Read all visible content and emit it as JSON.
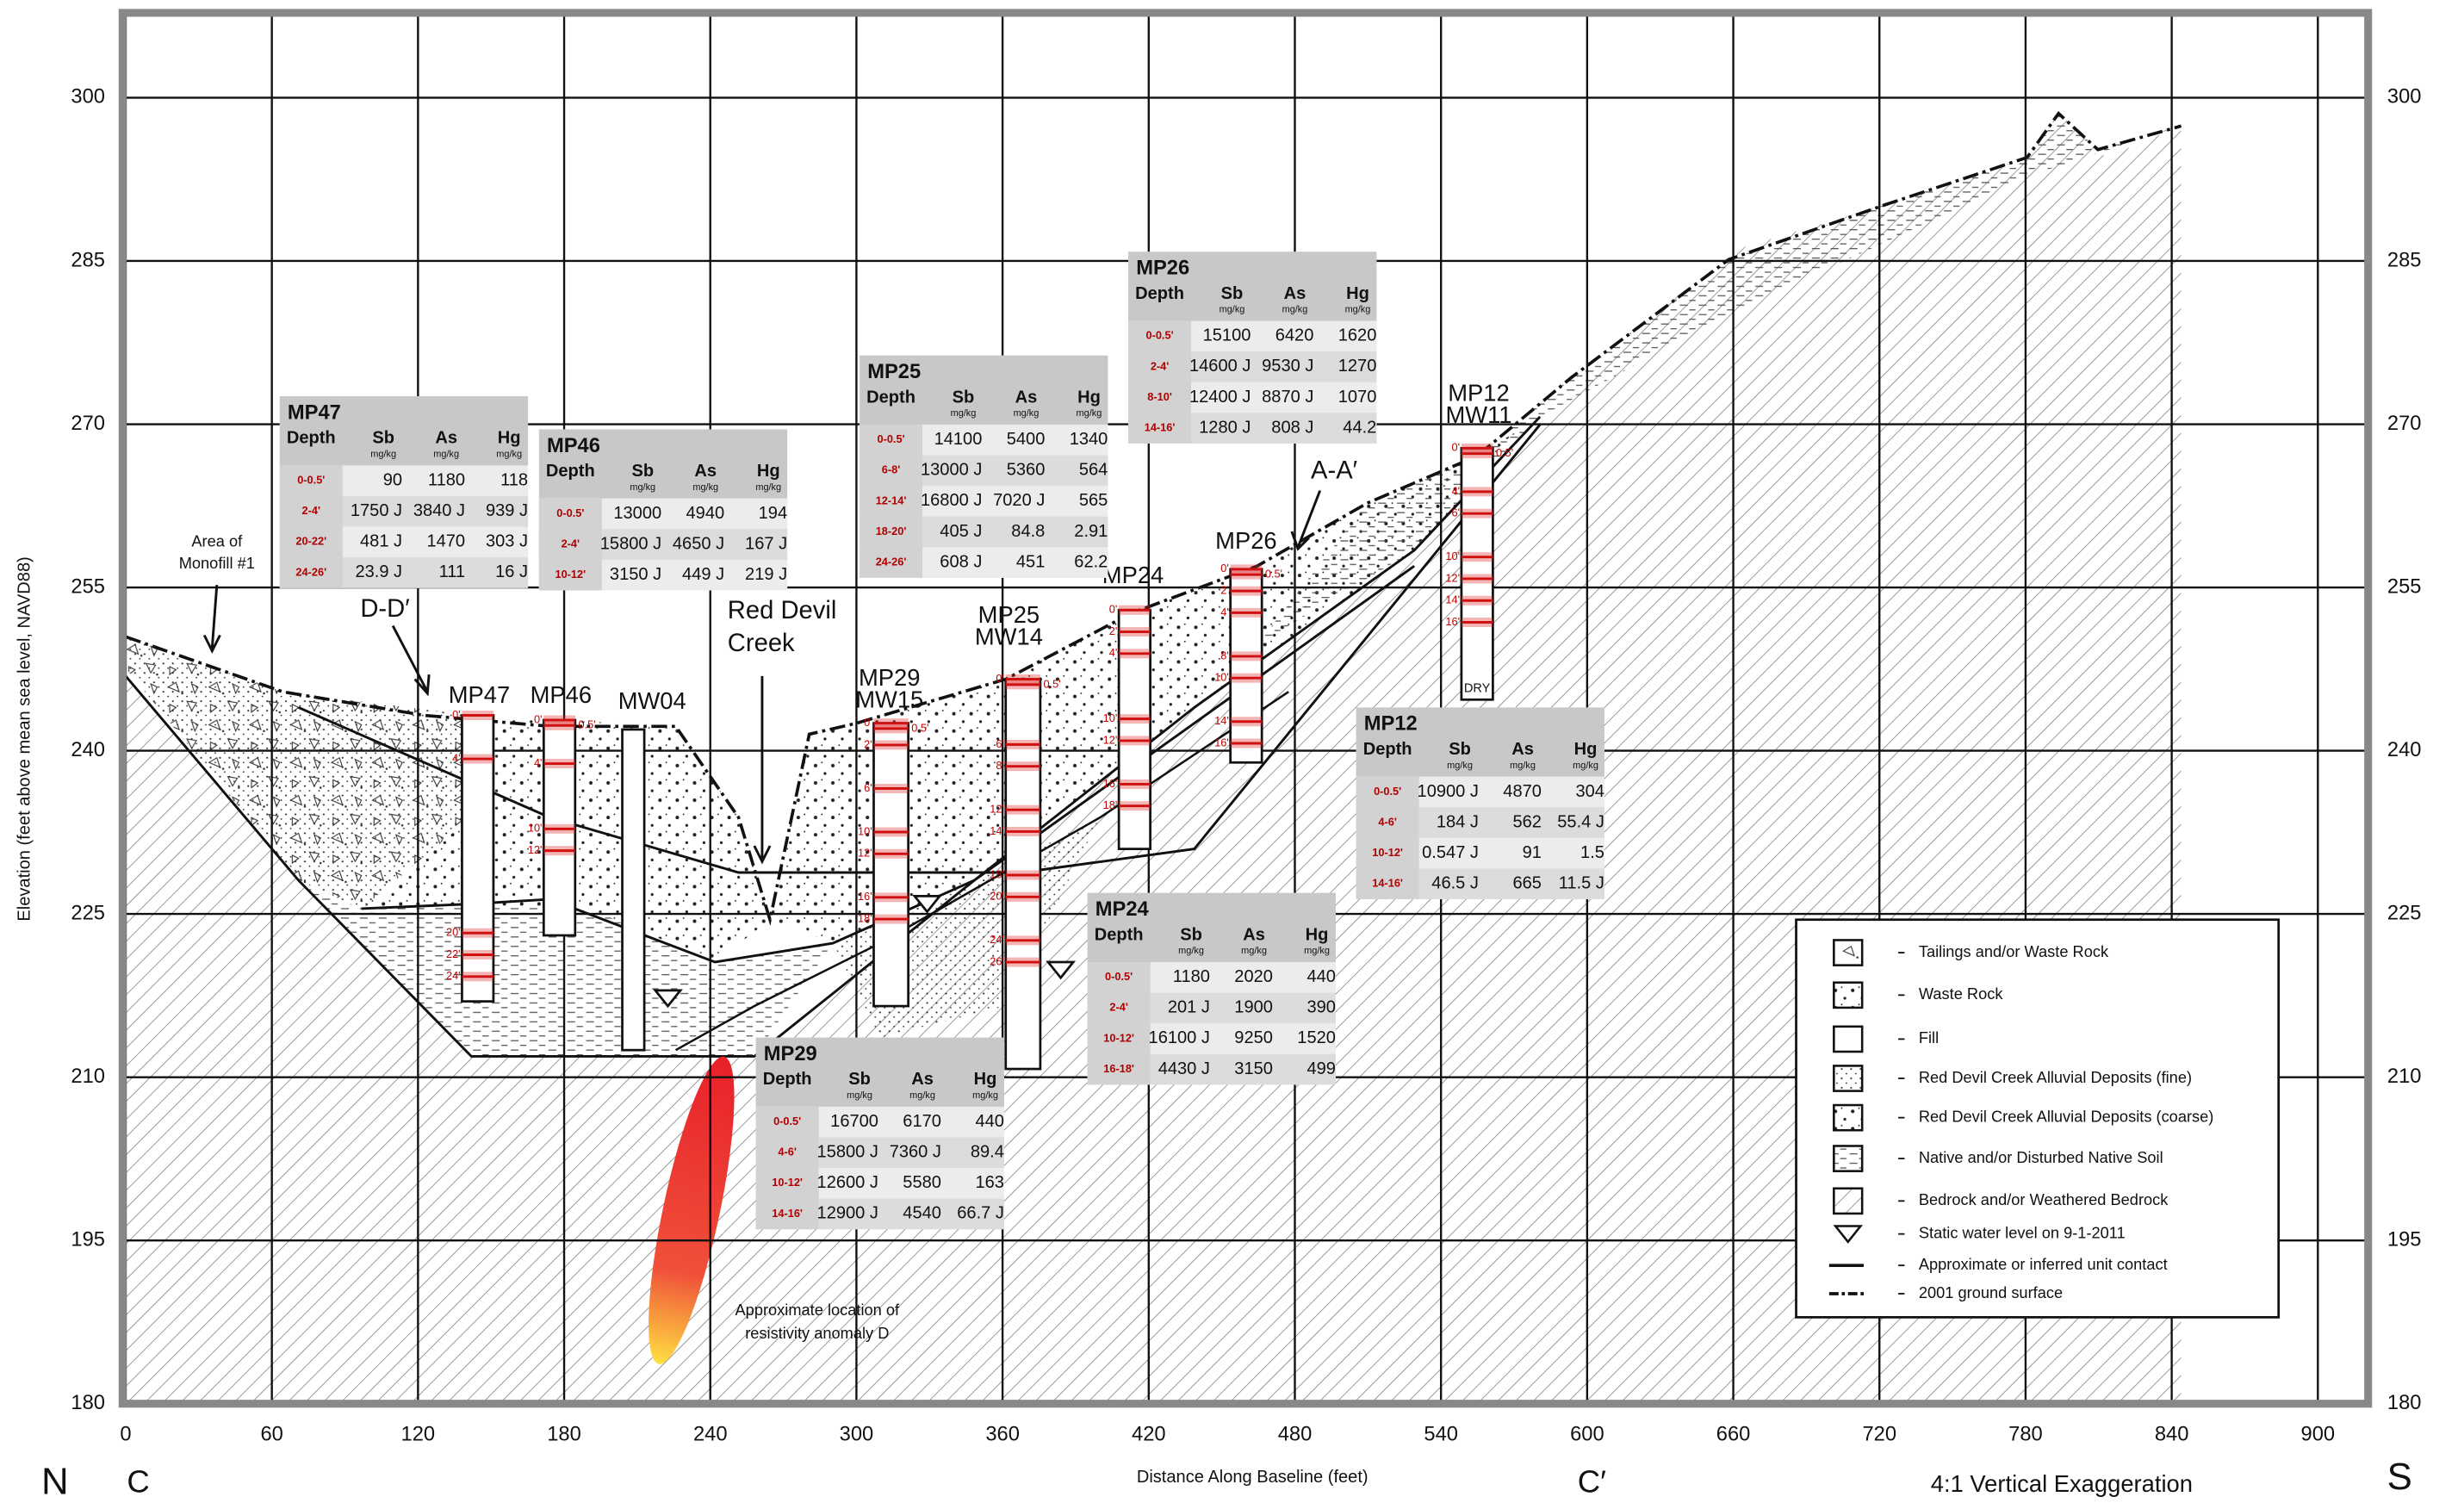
{
  "axes": {
    "xlabel": "Distance Along Baseline (feet)",
    "ylabel": "Elevation (feet above mean sea level, NAVD88)",
    "xlim": [
      0,
      920
    ],
    "ylim": [
      180,
      308
    ],
    "xticks": [
      0,
      60,
      120,
      180,
      240,
      300,
      360,
      420,
      480,
      540,
      600,
      660,
      720,
      780,
      840,
      900
    ],
    "yticks": [
      180,
      195,
      210,
      225,
      240,
      255,
      270,
      285,
      300
    ]
  },
  "corner_labels": {
    "north": "N",
    "south": "S",
    "start": "C",
    "end": "C′",
    "exaggeration": "4:1 Vertical Exaggeration"
  },
  "annotations": {
    "monofill": [
      "Area of",
      "Monofill #1"
    ],
    "section_dd": "D-D′",
    "section_aa": "A-A′",
    "creek": [
      "Red Devil",
      "Creek"
    ],
    "anomaly": [
      "Approximate location of",
      "resistivity anomaly D"
    ],
    "dry": "DRY"
  },
  "wells": [
    {
      "label": [
        "MP47"
      ],
      "depths": [
        "0'",
        "4'",
        "20'",
        "22'",
        "24'"
      ]
    },
    {
      "label": [
        "MP46"
      ],
      "depths": [
        "0'",
        "0.5'",
        "4'",
        "10'",
        "12'"
      ]
    },
    {
      "label": [
        "MW04"
      ],
      "depths": []
    },
    {
      "label": [
        "MP29",
        "MW15"
      ],
      "depths": [
        "0'",
        "0.5'",
        "2'",
        "6'",
        "10'",
        "12'",
        "16'",
        "18'"
      ]
    },
    {
      "label": [
        "MP25",
        "MW14"
      ],
      "depths": [
        "0'",
        "0.5'",
        "6'",
        "8'",
        "12'",
        "14'",
        "18'",
        "20'",
        "24'",
        "26'"
      ]
    },
    {
      "label": [
        "MP24"
      ],
      "depths": [
        "0'",
        "2'",
        "4'",
        "10'",
        "12'",
        "16'",
        "18'"
      ]
    },
    {
      "label": [
        "MP26"
      ],
      "depths": [
        "0'",
        "0.5'",
        "2'",
        "4'",
        "8'",
        "10'",
        "14'",
        "16'"
      ]
    },
    {
      "label": [
        "MP12",
        "MW11"
      ],
      "depths": [
        "0'",
        "0.5'",
        "4'",
        "6'",
        "10'",
        "12'",
        "14'",
        "16'"
      ]
    }
  ],
  "table_header": [
    "Depth",
    "Sb",
    "As",
    "Hg"
  ],
  "unit": "mg/kg",
  "tables": [
    {
      "title": "MP47",
      "rows": [
        [
          "0-0.5'",
          "90",
          "1180",
          "118"
        ],
        [
          "2-4'",
          "1750 J",
          "3840 J",
          "939 J"
        ],
        [
          "20-22'",
          "481 J",
          "1470",
          "303 J"
        ],
        [
          "24-26'",
          "23.9 J",
          "111",
          "16 J"
        ]
      ]
    },
    {
      "title": "MP46",
      "rows": [
        [
          "0-0.5'",
          "13000",
          "4940",
          "194"
        ],
        [
          "2-4'",
          "15800 J",
          "4650 J",
          "167 J"
        ],
        [
          "10-12'",
          "3150 J",
          "449 J",
          "219 J"
        ]
      ]
    },
    {
      "title": "MP25",
      "rows": [
        [
          "0-0.5'",
          "14100",
          "5400",
          "1340"
        ],
        [
          "6-8'",
          "13000 J",
          "5360",
          "564"
        ],
        [
          "12-14'",
          "16800 J",
          "7020 J",
          "565"
        ],
        [
          "18-20'",
          "405 J",
          "84.8",
          "2.91"
        ],
        [
          "24-26'",
          "608 J",
          "451",
          "62.2"
        ]
      ]
    },
    {
      "title": "MP26",
      "rows": [
        [
          "0-0.5'",
          "15100",
          "6420",
          "1620"
        ],
        [
          "2-4'",
          "14600 J",
          "9530 J",
          "1270"
        ],
        [
          "8-10'",
          "12400 J",
          "8870 J",
          "1070"
        ],
        [
          "14-16'",
          "1280 J",
          "808 J",
          "44.2"
        ]
      ]
    },
    {
      "title": "MP12",
      "rows": [
        [
          "0-0.5'",
          "10900 J",
          "4870",
          "304"
        ],
        [
          "4-6'",
          "184 J",
          "562",
          "55.4 J"
        ],
        [
          "10-12'",
          "0.547 J",
          "91",
          "1.5"
        ],
        [
          "14-16'",
          "46.5 J",
          "665",
          "11.5 J"
        ]
      ]
    },
    {
      "title": "MP24",
      "rows": [
        [
          "0-0.5'",
          "1180",
          "2020",
          "440"
        ],
        [
          "2-4'",
          "201 J",
          "1900",
          "390"
        ],
        [
          "10-12'",
          "16100 J",
          "9250",
          "1520"
        ],
        [
          "16-18'",
          "4430 J",
          "3150",
          "499"
        ]
      ]
    },
    {
      "title": "MP29",
      "rows": [
        [
          "0-0.5'",
          "16700",
          "6170",
          "440"
        ],
        [
          "4-6'",
          "15800 J",
          "7360 J",
          "89.4"
        ],
        [
          "10-12'",
          "12600 J",
          "5580",
          "163"
        ],
        [
          "14-16'",
          "12900 J",
          "4540",
          "66.7 J"
        ]
      ]
    }
  ],
  "legend": [
    "Tailings and/or Waste Rock",
    "Waste Rock",
    "Fill",
    "Red Devil Creek Alluvial Deposits (fine)",
    "Red Devil Creek Alluvial Deposits (coarse)",
    "Native and/or Disturbed Native Soil",
    "Bedrock and/or Weathered Bedrock",
    "Static water level on 9-1-2011",
    "Approximate or inferred unit contact",
    "2001 ground surface"
  ]
}
